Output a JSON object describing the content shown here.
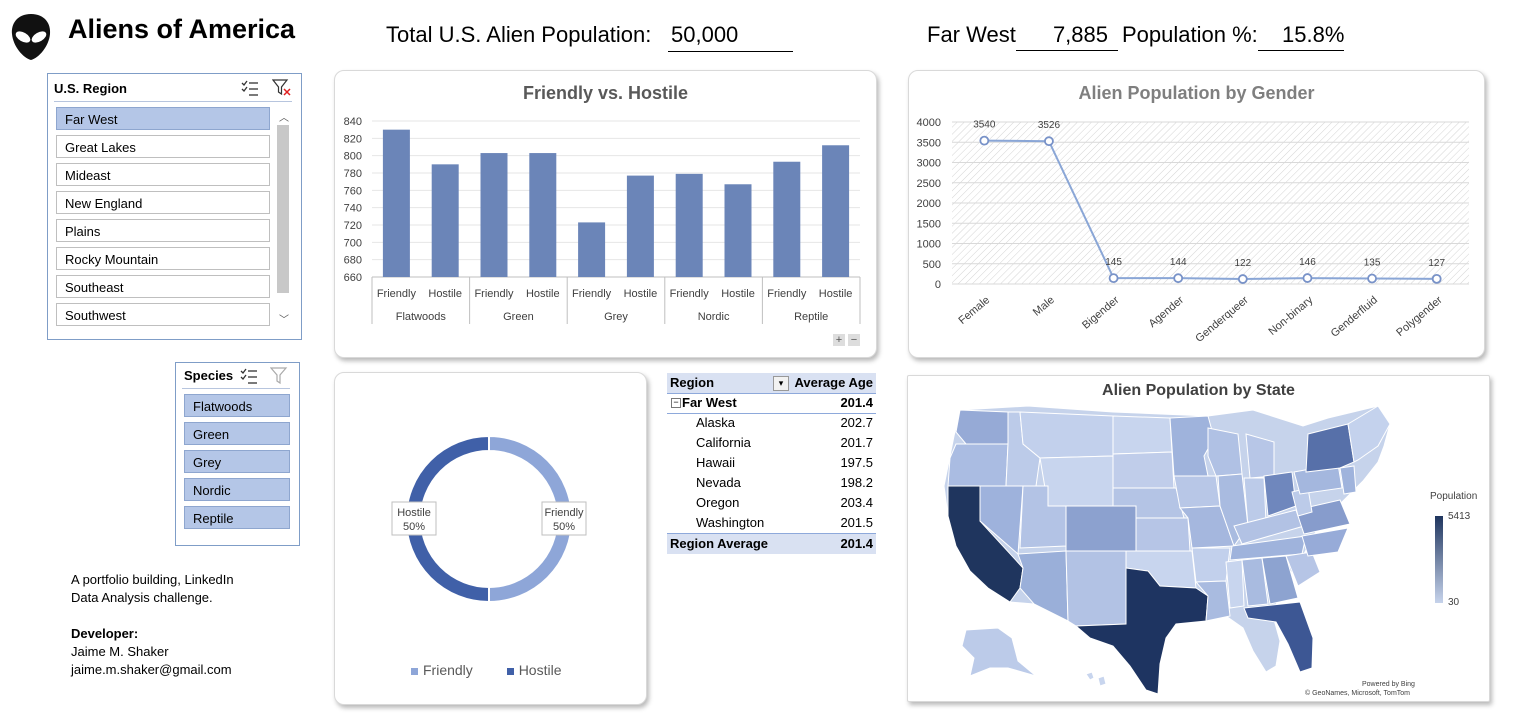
{
  "header": {
    "title": "Aliens of America",
    "total_label": "Total U.S. Alien Population:",
    "total_value": "50,000",
    "region_label": "Far West",
    "region_value": "7,885",
    "pct_label": "Population %:",
    "pct_value": "15.8%"
  },
  "region_slicer": {
    "title": "U.S. Region",
    "items": [
      "Far West",
      "Great Lakes",
      "Mideast",
      "New England",
      "Plains",
      "Rocky Mountain",
      "Southeast",
      "Southwest"
    ],
    "selected": "Far West"
  },
  "species_slicer": {
    "title": "Species",
    "items": [
      "Flatwoods",
      "Green",
      "Grey",
      "Nordic",
      "Reptile"
    ]
  },
  "credits": {
    "line1": "A portfolio building, LinkedIn",
    "line2": "Data Analysis challenge.",
    "dev_label": "Developer:",
    "name": "Jaime M. Shaker",
    "email": "jaime.m.shaker@gmail.com"
  },
  "friendly_hostile": {
    "title": "Friendly vs. Hostile",
    "chart_data": {
      "type": "bar",
      "groups": [
        "Flatwoods",
        "Green",
        "Grey",
        "Nordic",
        "Reptile"
      ],
      "categories": [
        "Friendly",
        "Hostile"
      ],
      "values": [
        [
          830,
          790
        ],
        [
          803,
          803
        ],
        [
          723,
          777
        ],
        [
          779,
          767
        ],
        [
          793,
          812
        ]
      ],
      "ylim": [
        660,
        840
      ],
      "yticks": [
        660,
        680,
        700,
        720,
        740,
        760,
        780,
        800,
        820,
        840
      ],
      "color": "#6b85b8"
    }
  },
  "gender": {
    "title": "Alien Population by Gender",
    "chart_data": {
      "type": "line",
      "categories": [
        "Female",
        "Male",
        "Bigender",
        "Agender",
        "Genderqueer",
        "Non-binary",
        "Genderfluid",
        "Polygender"
      ],
      "values": [
        3540,
        3526,
        145,
        144,
        122,
        146,
        135,
        127
      ],
      "ylim": [
        0,
        4000
      ],
      "yticks": [
        0,
        500,
        1000,
        1500,
        2000,
        2500,
        3000,
        3500,
        4000
      ],
      "color": "#8aa6d6"
    }
  },
  "donut": {
    "chart_data": {
      "type": "pie",
      "labels": [
        "Friendly",
        "Hostile"
      ],
      "values": [
        50,
        50
      ],
      "percent_labels": [
        "50%",
        "50%"
      ],
      "colors": [
        "#8ea6d8",
        "#4060a8"
      ]
    }
  },
  "age_table": {
    "col1": "Region",
    "col2": "Average Age",
    "group_label": "Far West",
    "group_value": "201.4",
    "rows": [
      {
        "state": "Alaska",
        "age": "202.7"
      },
      {
        "state": "California",
        "age": "201.7"
      },
      {
        "state": "Hawaii",
        "age": "197.5"
      },
      {
        "state": "Nevada",
        "age": "198.2"
      },
      {
        "state": "Oregon",
        "age": "203.4"
      },
      {
        "state": "Washington",
        "age": "201.5"
      }
    ],
    "total_label": "Region Average",
    "total_value": "201.4"
  },
  "map": {
    "title": "Alien Population by State",
    "legend_title": "Population",
    "legend_max": "5413",
    "legend_min": "30",
    "attribution1": "Powered by Bing",
    "attribution2": "© GeoNames, Microsoft, TomTom"
  }
}
